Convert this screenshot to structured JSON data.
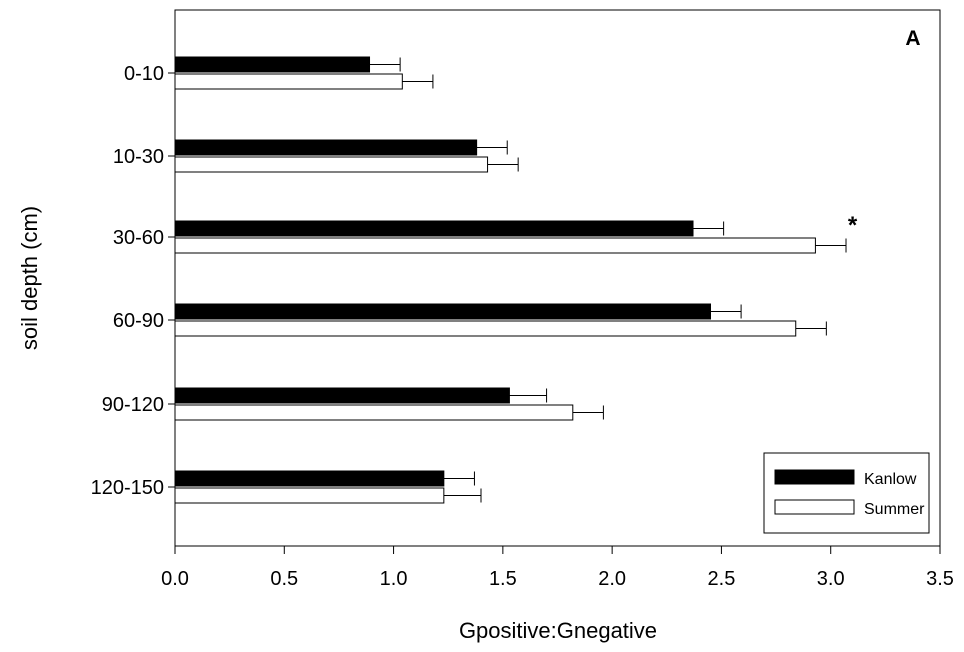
{
  "chart_data": {
    "type": "bar",
    "orientation": "horizontal",
    "panel_label": "A",
    "xlabel": "Gpositive:Gnegative",
    "ylabel": "soil depth (cm)",
    "xlim": [
      0.0,
      3.5
    ],
    "xticks": [
      "0.0",
      "0.5",
      "1.0",
      "1.5",
      "2.0",
      "2.5",
      "3.0",
      "3.5"
    ],
    "categories": [
      "0-10",
      "10-30",
      "30-60",
      "60-90",
      "90-120",
      "120-150"
    ],
    "series": [
      {
        "name": "Kanlow",
        "color": "#000000",
        "values": [
          0.89,
          1.38,
          2.37,
          2.45,
          1.53,
          1.23
        ],
        "errors": [
          0.14,
          0.14,
          0.14,
          0.14,
          0.17,
          0.14
        ]
      },
      {
        "name": "Summer",
        "color": "#ffffff",
        "values": [
          1.04,
          1.43,
          2.93,
          2.84,
          1.82,
          1.23
        ],
        "errors": [
          0.14,
          0.14,
          0.14,
          0.14,
          0.14,
          0.17
        ]
      }
    ],
    "annotations": [
      {
        "text": "*",
        "category": "30-60"
      }
    ],
    "legend_position": "bottom-right",
    "grid": false
  }
}
